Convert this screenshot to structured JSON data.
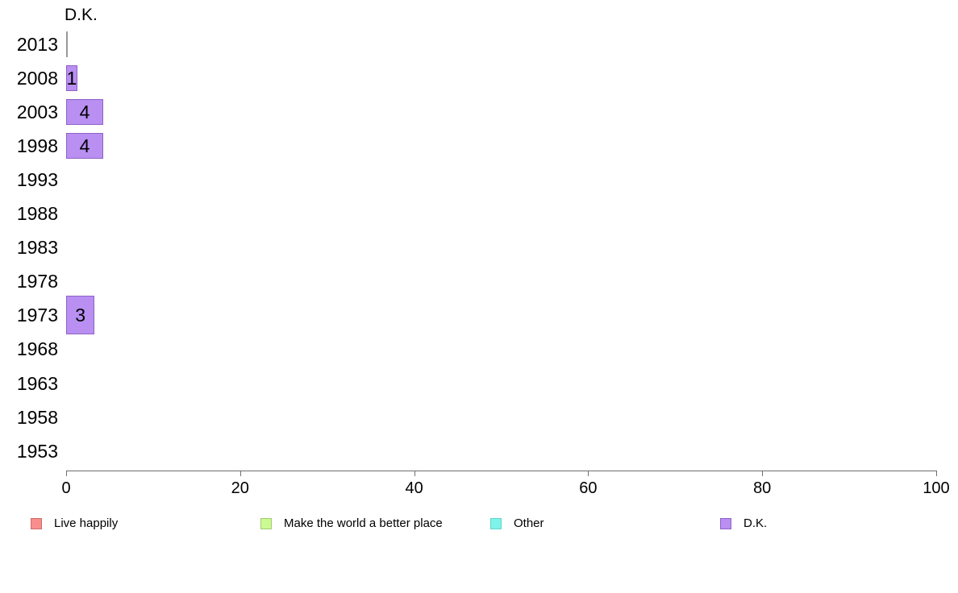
{
  "chart_data": {
    "type": "bar",
    "orientation": "horizontal",
    "title": "D.K.",
    "categories": [
      "2013",
      "2008",
      "2003",
      "1998",
      "1993",
      "1988",
      "1983",
      "1978",
      "1973",
      "1968",
      "1963",
      "1958",
      "1953"
    ],
    "series": [
      {
        "name": "D.K.",
        "values": [
          0,
          1,
          4,
          4,
          null,
          null,
          null,
          null,
          3,
          null,
          null,
          null,
          null
        ],
        "fill_color": "#b98ff2",
        "border_color": "#8f62c6"
      }
    ],
    "bar_value_labels": [
      "",
      "1",
      "4",
      "4",
      "",
      "",
      "",
      "",
      "3",
      "",
      "",
      "",
      ""
    ],
    "x_ticks": [
      0,
      20,
      40,
      60,
      80,
      100
    ],
    "xlim": [
      0,
      100
    ],
    "xlabel": "",
    "ylabel": "",
    "grid": false,
    "legend_position": "bottom",
    "legend": [
      {
        "label": "Live happily",
        "fill_color": "#f98c8c",
        "border_color": "#cc6b6b"
      },
      {
        "label": "Make the world a better place",
        "fill_color": "#cbfa92",
        "border_color": "#a0cc74"
      },
      {
        "label": "Other",
        "fill_color": "#7ff3ea",
        "border_color": "#60d6cd"
      },
      {
        "label": "D.K.",
        "fill_color": "#b98ff2",
        "border_color": "#8f62c6"
      }
    ],
    "colors": {
      "axis": "#6e6e6e",
      "zero_value_bar": "#999999",
      "text": "#000000",
      "background": "#ffffff"
    }
  }
}
